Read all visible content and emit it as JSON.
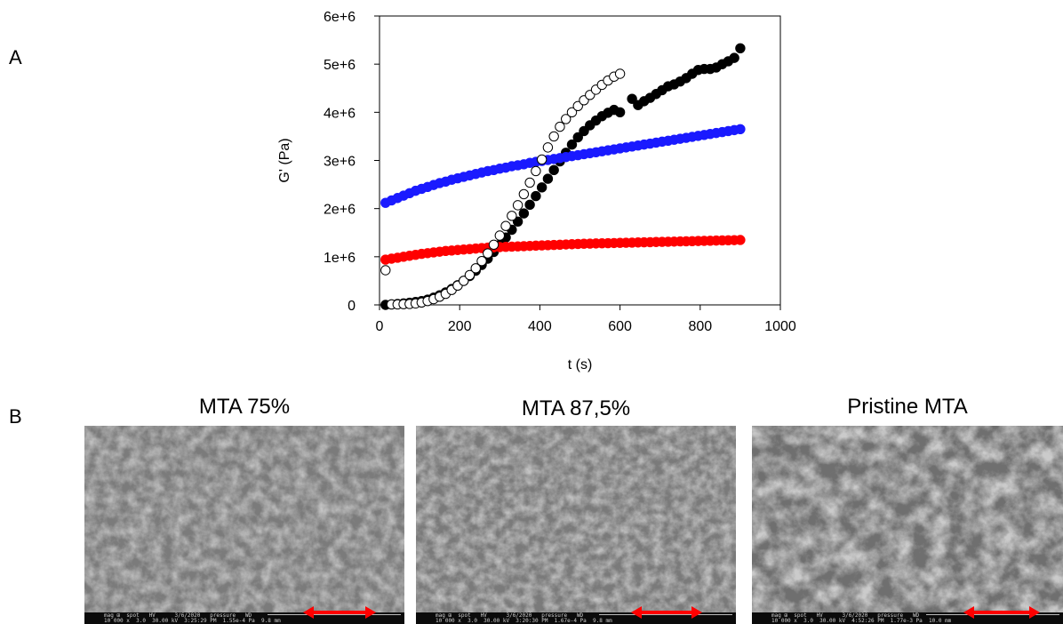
{
  "panel_labels": {
    "a": "A",
    "b": "B"
  },
  "chart_data": {
    "type": "scatter",
    "xlabel": "t (s)",
    "ylabel": "G' (Pa)",
    "xlim": [
      0,
      1000
    ],
    "ylim": [
      0,
      6000000
    ],
    "xticks": [
      0,
      200,
      400,
      600,
      800,
      1000
    ],
    "yticks": [
      0,
      1000000,
      2000000,
      3000000,
      4000000,
      5000000,
      6000000
    ],
    "xtick_labels": [
      "0",
      "200",
      "400",
      "600",
      "800",
      "1000"
    ],
    "ytick_labels": [
      "0",
      "1e+6",
      "2e+6",
      "3e+6",
      "4e+6",
      "5e+6",
      "6e+6"
    ],
    "grid": false,
    "series": [
      {
        "marker": "open-circle",
        "color": "#000000",
        "x": [
          15,
          30,
          45,
          60,
          75,
          90,
          105,
          120,
          135,
          150,
          165,
          180,
          195,
          210,
          225,
          240,
          255,
          270,
          285,
          300,
          315,
          330,
          345,
          360,
          375,
          390,
          405,
          420,
          435,
          450,
          465,
          480,
          495,
          510,
          525,
          540,
          555,
          570,
          585,
          600
        ],
        "y": [
          720000,
          10000,
          10000,
          15000,
          20000,
          30000,
          50000,
          80000,
          120000,
          170000,
          230000,
          310000,
          400000,
          500000,
          620000,
          760000,
          910000,
          1070000,
          1250000,
          1440000,
          1640000,
          1850000,
          2070000,
          2300000,
          2540000,
          2780000,
          3020000,
          3270000,
          3500000,
          3700000,
          3860000,
          4000000,
          4130000,
          4250000,
          4360000,
          4470000,
          4570000,
          4660000,
          4740000,
          4800000
        ]
      },
      {
        "marker": "filled-circle",
        "color": "#000000",
        "x": [
          15,
          30,
          45,
          60,
          75,
          90,
          105,
          120,
          135,
          150,
          165,
          180,
          195,
          210,
          225,
          240,
          255,
          270,
          285,
          300,
          315,
          330,
          345,
          360,
          375,
          390,
          405,
          420,
          435,
          450,
          465,
          480,
          495,
          510,
          525,
          540,
          555,
          570,
          585,
          600,
          630,
          645,
          660,
          675,
          690,
          705,
          720,
          735,
          750,
          765,
          780,
          795,
          810,
          825,
          840,
          855,
          870,
          885,
          900
        ],
        "y": [
          0,
          10000,
          20000,
          30000,
          45000,
          60000,
          80000,
          110000,
          150000,
          200000,
          260000,
          330000,
          410000,
          500000,
          600000,
          710000,
          830000,
          960000,
          1100000,
          1250000,
          1400000,
          1560000,
          1730000,
          1900000,
          2080000,
          2260000,
          2440000,
          2620000,
          2800000,
          2980000,
          3160000,
          3330000,
          3480000,
          3610000,
          3730000,
          3830000,
          3920000,
          3990000,
          4050000,
          4000000,
          4280000,
          4150000,
          4230000,
          4300000,
          4380000,
          4460000,
          4540000,
          4580000,
          4640000,
          4710000,
          4800000,
          4880000,
          4900000,
          4900000,
          4930000,
          5000000,
          5060000,
          5130000,
          5330000
        ]
      },
      {
        "marker": "filled-circle",
        "color": "#1a1aff",
        "x": [
          15,
          30,
          45,
          60,
          75,
          90,
          105,
          120,
          135,
          150,
          165,
          180,
          195,
          210,
          225,
          240,
          255,
          270,
          285,
          300,
          315,
          330,
          345,
          360,
          375,
          390,
          405,
          420,
          435,
          450,
          465,
          480,
          495,
          510,
          525,
          540,
          555,
          570,
          585,
          600,
          615,
          630,
          645,
          660,
          675,
          690,
          705,
          720,
          735,
          750,
          765,
          780,
          795,
          810,
          825,
          840,
          855,
          870,
          885,
          900
        ],
        "y": [
          2120000,
          2170000,
          2220000,
          2270000,
          2320000,
          2370000,
          2410000,
          2450000,
          2490000,
          2530000,
          2560000,
          2600000,
          2630000,
          2660000,
          2690000,
          2720000,
          2750000,
          2780000,
          2800000,
          2830000,
          2850000,
          2880000,
          2900000,
          2920000,
          2950000,
          2970000,
          2990000,
          3010000,
          3030000,
          3050000,
          3070000,
          3090000,
          3110000,
          3130000,
          3150000,
          3170000,
          3190000,
          3210000,
          3230000,
          3250000,
          3270000,
          3290000,
          3310000,
          3330000,
          3350000,
          3370000,
          3390000,
          3410000,
          3430000,
          3450000,
          3470000,
          3490000,
          3510000,
          3530000,
          3550000,
          3570000,
          3590000,
          3610000,
          3630000,
          3650000
        ]
      },
      {
        "marker": "filled-circle",
        "color": "#ff0000",
        "x": [
          15,
          30,
          45,
          60,
          75,
          90,
          105,
          120,
          135,
          150,
          165,
          180,
          195,
          210,
          225,
          240,
          255,
          270,
          285,
          300,
          315,
          330,
          345,
          360,
          375,
          390,
          405,
          420,
          435,
          450,
          465,
          480,
          495,
          510,
          525,
          540,
          555,
          570,
          585,
          600,
          615,
          630,
          645,
          660,
          675,
          690,
          705,
          720,
          735,
          750,
          765,
          780,
          795,
          810,
          825,
          840,
          855,
          870,
          885,
          900
        ],
        "y": [
          940000,
          960000,
          980000,
          1000000,
          1020000,
          1040000,
          1060000,
          1075000,
          1090000,
          1105000,
          1120000,
          1130000,
          1140000,
          1150000,
          1160000,
          1170000,
          1180000,
          1190000,
          1195000,
          1200000,
          1205000,
          1210000,
          1215000,
          1220000,
          1225000,
          1230000,
          1235000,
          1240000,
          1245000,
          1250000,
          1255000,
          1260000,
          1265000,
          1270000,
          1273000,
          1276000,
          1279000,
          1282000,
          1285000,
          1288000,
          1291000,
          1294000,
          1297000,
          1300000,
          1303000,
          1306000,
          1309000,
          1312000,
          1315000,
          1318000,
          1321000,
          1324000,
          1327000,
          1330000,
          1333000,
          1336000,
          1339000,
          1342000,
          1345000,
          1348000
        ]
      }
    ]
  },
  "sem_images": [
    {
      "title": "MTA 75%",
      "info": "mag ⊞  spot   HV      3/6/2020   pressure   WD\n10 000 x  3.0  30.00 kV  3:25:29 PM  1.55e-4 Pa  9.8 mm",
      "scale_text": "75%"
    },
    {
      "title": "MTA 87,5%",
      "info": "mag ⊞  spot   HV      3/6/2020   pressure   WD\n10 000 x  3.0  30.00 kV  3:20:30 PM  1.67e-4 Pa  9.8 mm",
      "scale_text": "87.5%"
    },
    {
      "title": "Pristine MTA",
      "info": "mag ⊞  spot   HV      3/6/2020   pressure   WD\n10 000 x  3.0  30.00 kV  4:52:26 PM  1.77e-3 Pa  10.0 mm",
      "scale_text": "100%"
    }
  ]
}
